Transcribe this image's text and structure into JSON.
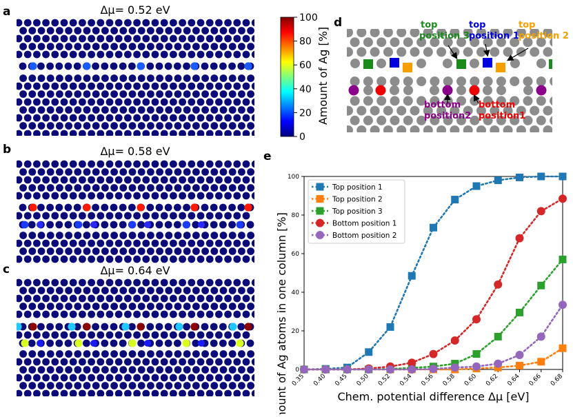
{
  "panel_labels": [
    "a",
    "b",
    "c",
    "d",
    "e"
  ],
  "panels": {
    "a": {
      "title": "Δμ= 0.52 eV"
    },
    "b": {
      "title": "Δμ= 0.58 eV"
    },
    "c": {
      "title": "Δμ= 0.64 eV"
    }
  },
  "colorbar": {
    "label": "Amount of Ag [%]",
    "ticks": [
      "0",
      "20",
      "40",
      "60",
      "80",
      "100"
    ],
    "range": [
      0,
      100
    ]
  },
  "panel_d": {
    "labels": [
      {
        "id": "top3",
        "line1": "top",
        "line2": "position 3",
        "color": "#1a8a1a"
      },
      {
        "id": "top1",
        "line1": "top",
        "line2": "position 1",
        "color": "#0000dd"
      },
      {
        "id": "top2",
        "line1": "top",
        "line2": "position 2",
        "color": "#f5a000"
      },
      {
        "id": "bottom2",
        "line1": "bottom",
        "line2": "position2",
        "color": "#8b008b"
      },
      {
        "id": "bottom1",
        "line1": "bottom",
        "line2": "position1",
        "color": "#ee0000"
      }
    ]
  },
  "colors": {
    "atom_dark": "#0a0a78",
    "grey_atom": "#8c8c8c",
    "top1": "#1f77b4",
    "top2": "#ff7f0e",
    "top3": "#2ca02c",
    "bottom1": "#d62728",
    "bottom2": "#9467bd"
  },
  "chart_data": {
    "type": "line",
    "xlabel": "Chem. potential difference Δμ [eV]",
    "ylabel": "Amount of Ag atoms in one column [%]",
    "x_ticks": [
      "0.35",
      "0.40",
      "0.45",
      "0.50",
      "0.52",
      "0.54",
      "0.56",
      "0.58",
      "0.60",
      "0.62",
      "0.64",
      "0.66",
      "0.68"
    ],
    "ylim": [
      0,
      100
    ],
    "y_ticks": [
      0,
      20,
      40,
      60,
      80,
      100
    ],
    "legend_position": "top-left",
    "series": [
      {
        "name": "Top position 1",
        "marker": "square",
        "color": "#1f77b4",
        "values": [
          0,
          0.3,
          1,
          9,
          22,
          48.5,
          73.5,
          88,
          95,
          98,
          99.5,
          100,
          100
        ]
      },
      {
        "name": "Top position 2",
        "marker": "square",
        "color": "#ff7f0e",
        "values": [
          0,
          0,
          0,
          0,
          0,
          0,
          0,
          0,
          0.5,
          1,
          2,
          4,
          11
        ]
      },
      {
        "name": "Top position 3",
        "marker": "square",
        "color": "#2ca02c",
        "values": [
          0,
          0,
          0,
          0,
          0.3,
          0.8,
          1.5,
          3,
          8,
          17,
          29.5,
          43.5,
          57
        ]
      },
      {
        "name": "Bottom position 1",
        "marker": "circle",
        "color": "#d62728",
        "values": [
          0,
          0,
          0,
          0.5,
          1.5,
          3.5,
          8,
          15,
          26,
          44,
          68,
          82,
          88.5
        ]
      },
      {
        "name": "Bottom position 2",
        "marker": "circle",
        "color": "#9467bd",
        "values": [
          0,
          0,
          0,
          0,
          0,
          0,
          0.3,
          1,
          1.5,
          3,
          7.5,
          17,
          33.5
        ]
      }
    ]
  }
}
